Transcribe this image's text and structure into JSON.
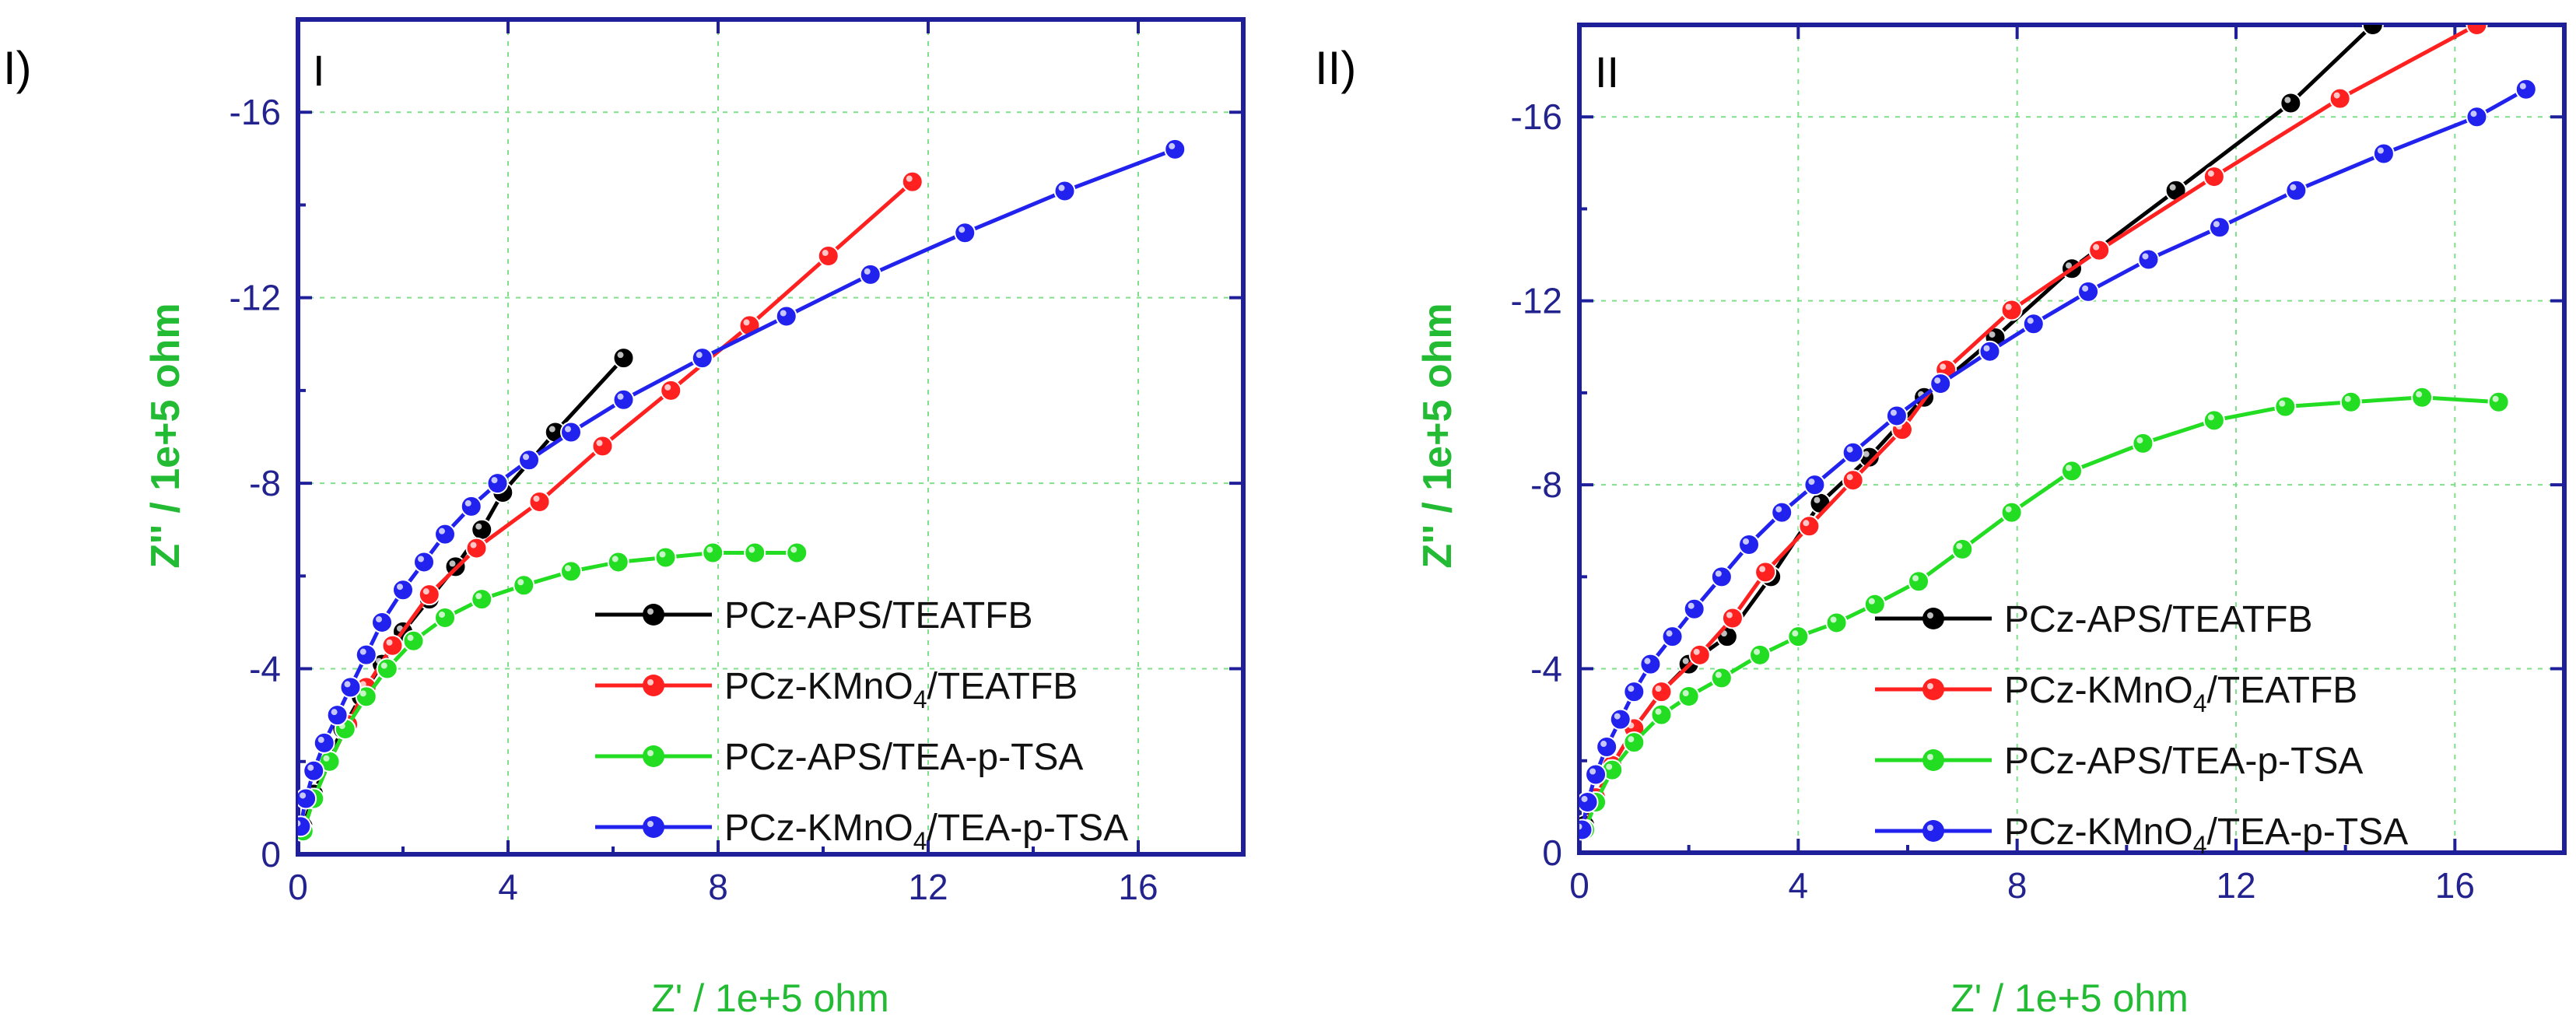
{
  "figure": {
    "panel_labels": [
      "I)",
      "II)"
    ]
  },
  "chart_data": [
    {
      "type": "scatter",
      "title": "I",
      "xlabel": "Z' / 1e+5 ohm",
      "ylabel": "Z'' / 1e+5 ohm",
      "xlim": [
        0,
        18
      ],
      "ylim": [
        0,
        -18
      ],
      "xticks": [
        0,
        4,
        8,
        12,
        16
      ],
      "xtick_labels": [
        "0",
        "4",
        "8",
        "12",
        "16"
      ],
      "yticks": [
        0,
        -4,
        -8,
        -12,
        -16
      ],
      "ytick_labels": [
        "0",
        "-4",
        "-8",
        "-12",
        "-16"
      ],
      "grid": true,
      "legend_position": "lower-right",
      "series": [
        {
          "name": "PCz-APS/TEATFB",
          "label_main": "PCz-APS/TEATFB",
          "label_sub": "",
          "label_tail": "",
          "color": "#000000",
          "x": [
            0.1,
            0.3,
            0.55,
            0.85,
            1.2,
            1.6,
            2.0,
            2.5,
            3.0,
            3.5,
            3.9,
            4.9,
            6.2
          ],
          "y": [
            -0.6,
            -1.3,
            -2.0,
            -2.7,
            -3.4,
            -4.1,
            -4.8,
            -5.5,
            -6.2,
            -7.0,
            -7.8,
            -9.1,
            -10.7
          ]
        },
        {
          "name": "PCz-KMnO4/TEATFB",
          "label_main": "PCz-KMnO",
          "label_sub": "4",
          "label_tail": "/TEATFB",
          "color": "#ff2020",
          "x": [
            0.1,
            0.3,
            0.6,
            0.95,
            1.3,
            1.8,
            2.5,
            3.4,
            4.6,
            5.8,
            7.1,
            8.6,
            10.1,
            11.7
          ],
          "y": [
            -0.5,
            -1.2,
            -2.0,
            -2.8,
            -3.6,
            -4.5,
            -5.6,
            -6.6,
            -7.6,
            -8.8,
            -10.0,
            -11.4,
            -12.9,
            -14.5
          ]
        },
        {
          "name": "PCz-APS/TEA-p-TSA",
          "label_main": "PCz-APS/TEA-p-TSA",
          "label_sub": "",
          "label_tail": "",
          "color": "#22dd22",
          "x": [
            0.1,
            0.3,
            0.6,
            0.9,
            1.3,
            1.7,
            2.2,
            2.8,
            3.5,
            4.3,
            5.2,
            6.1,
            7.0,
            7.9,
            8.7,
            9.5
          ],
          "y": [
            -0.5,
            -1.2,
            -2.0,
            -2.7,
            -3.4,
            -4.0,
            -4.6,
            -5.1,
            -5.5,
            -5.8,
            -6.1,
            -6.3,
            -6.4,
            -6.5,
            -6.5,
            -6.5
          ]
        },
        {
          "name": "PCz-KMnO4/TEA-p-TSA",
          "label_main": "PCz-KMnO",
          "label_sub": "4",
          "label_tail": "/TEA-p-TSA",
          "color": "#2222ee",
          "x": [
            0.05,
            0.15,
            0.3,
            0.5,
            0.75,
            1.0,
            1.3,
            1.6,
            2.0,
            2.4,
            2.8,
            3.3,
            3.8,
            4.4,
            5.2,
            6.2,
            7.7,
            9.3,
            10.9,
            12.7,
            14.6,
            16.7
          ],
          "y": [
            -0.6,
            -1.2,
            -1.8,
            -2.4,
            -3.0,
            -3.6,
            -4.3,
            -5.0,
            -5.7,
            -6.3,
            -6.9,
            -7.5,
            -8.0,
            -8.5,
            -9.1,
            -9.8,
            -10.7,
            -11.6,
            -12.5,
            -13.4,
            -14.3,
            -15.2
          ]
        }
      ]
    },
    {
      "type": "scatter",
      "title": "II",
      "xlabel": "Z' / 1e+5 ohm",
      "ylabel": "Z'' / 1e+5 ohm",
      "xlim": [
        0,
        18
      ],
      "ylim": [
        0,
        -18
      ],
      "xticks": [
        0,
        4,
        8,
        12,
        16
      ],
      "xtick_labels": [
        "0",
        "4",
        "8",
        "12",
        "16"
      ],
      "yticks": [
        0,
        -4,
        -8,
        -12,
        -16
      ],
      "ytick_labels": [
        "0",
        "-4",
        "-8",
        "-12",
        "-16"
      ],
      "grid": true,
      "legend_position": "lower-right",
      "series": [
        {
          "name": "PCz-APS/TEATFB",
          "label_main": "PCz-APS/TEATFB",
          "label_sub": "",
          "label_tail": "",
          "color": "#000000",
          "x": [
            0.1,
            0.3,
            0.6,
            1.0,
            1.5,
            2.0,
            2.7,
            3.5,
            4.4,
            5.3,
            6.3,
            7.6,
            9.0,
            10.9,
            13.0,
            14.5
          ],
          "y": [
            -0.6,
            -1.2,
            -1.9,
            -2.7,
            -3.5,
            -4.1,
            -4.7,
            -6.0,
            -7.6,
            -8.6,
            -9.9,
            -11.2,
            -12.7,
            -14.4,
            -16.3,
            -18.0
          ]
        },
        {
          "name": "PCz-KMnO4/TEATFB",
          "label_main": "PCz-KMnO",
          "label_sub": "4",
          "label_tail": "/TEATFB",
          "color": "#ff2020",
          "x": [
            0.1,
            0.3,
            0.6,
            1.0,
            1.5,
            2.2,
            2.8,
            3.4,
            4.2,
            5.0,
            5.9,
            6.7,
            7.9,
            9.5,
            11.6,
            13.9,
            16.4
          ],
          "y": [
            -0.5,
            -1.2,
            -1.9,
            -2.7,
            -3.5,
            -4.3,
            -5.1,
            -6.1,
            -7.1,
            -8.1,
            -9.2,
            -10.5,
            -11.8,
            -13.1,
            -14.7,
            -16.4,
            -18.0
          ]
        },
        {
          "name": "PCz-APS/TEA-p-TSA",
          "label_main": "PCz-APS/TEA-p-TSA",
          "label_sub": "",
          "label_tail": "",
          "color": "#22dd22",
          "x": [
            0.1,
            0.3,
            0.6,
            1.0,
            1.5,
            2.0,
            2.6,
            3.3,
            4.0,
            4.7,
            5.4,
            6.2,
            7.0,
            7.9,
            9.0,
            10.3,
            11.6,
            12.9,
            14.1,
            15.4,
            16.8
          ],
          "y": [
            -0.5,
            -1.1,
            -1.8,
            -2.4,
            -3.0,
            -3.4,
            -3.8,
            -4.3,
            -4.7,
            -5.0,
            -5.4,
            -5.9,
            -6.6,
            -7.4,
            -8.3,
            -8.9,
            -9.4,
            -9.7,
            -9.8,
            -9.9,
            -9.8
          ]
        },
        {
          "name": "PCz-KMnO4/TEA-p-TSA",
          "label_main": "PCz-KMnO",
          "label_sub": "4",
          "label_tail": "/TEA-p-TSA",
          "color": "#2222ee",
          "x": [
            0.05,
            0.15,
            0.3,
            0.5,
            0.75,
            1.0,
            1.3,
            1.7,
            2.1,
            2.6,
            3.1,
            3.7,
            4.3,
            5.0,
            5.8,
            6.6,
            7.5,
            8.3,
            9.3,
            10.4,
            11.7,
            13.1,
            14.7,
            16.4,
            17.3
          ],
          "y": [
            -0.5,
            -1.1,
            -1.7,
            -2.3,
            -2.9,
            -3.5,
            -4.1,
            -4.7,
            -5.3,
            -6.0,
            -6.7,
            -7.4,
            -8.0,
            -8.7,
            -9.5,
            -10.2,
            -10.9,
            -11.5,
            -12.2,
            -12.9,
            -13.6,
            -14.4,
            -15.2,
            -16.0,
            -16.6
          ]
        }
      ]
    }
  ]
}
